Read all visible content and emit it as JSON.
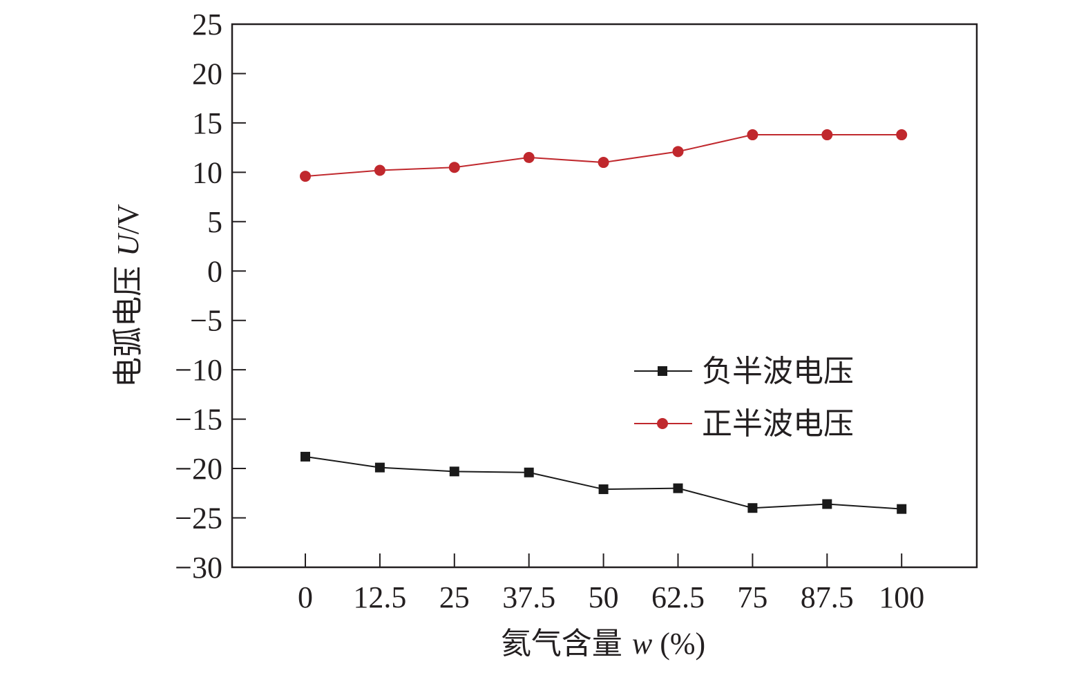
{
  "chart_data": {
    "type": "line",
    "x_categories": [
      "0",
      "12.5",
      "25",
      "37.5",
      "50",
      "62.5",
      "75",
      "87.5",
      "100"
    ],
    "x": [
      0,
      12.5,
      25,
      37.5,
      50,
      62.5,
      75,
      87.5,
      100
    ],
    "ylim": [
      -30,
      25
    ],
    "y_ticks": [
      25,
      20,
      15,
      10,
      5,
      0,
      -5,
      -10,
      -15,
      -20,
      -25,
      -30
    ],
    "y_tick_labels": [
      "25",
      "20",
      "15",
      "10",
      "5",
      "0",
      "−5",
      "−10",
      "−15",
      "−20",
      "−25",
      "−30"
    ],
    "xlabel": {
      "main": "氦气含量 ",
      "var": "w",
      "unit": " (%)"
    },
    "ylabel": {
      "main": "电弧电压 ",
      "var": "U",
      "unit": "/V"
    },
    "grid": false,
    "legend_position": "center-right",
    "series": [
      {
        "name": "负半波电压",
        "marker": "square",
        "color": "#1a1a1a",
        "values": [
          -18.8,
          -19.9,
          -20.3,
          -20.4,
          -22.1,
          -22.0,
          -24.0,
          -23.6,
          -24.1
        ]
      },
      {
        "name": "正半波电压",
        "marker": "circle",
        "color": "#c0282d",
        "values": [
          9.6,
          10.2,
          10.5,
          11.5,
          11.0,
          12.1,
          13.8,
          13.8,
          13.8
        ]
      }
    ]
  }
}
